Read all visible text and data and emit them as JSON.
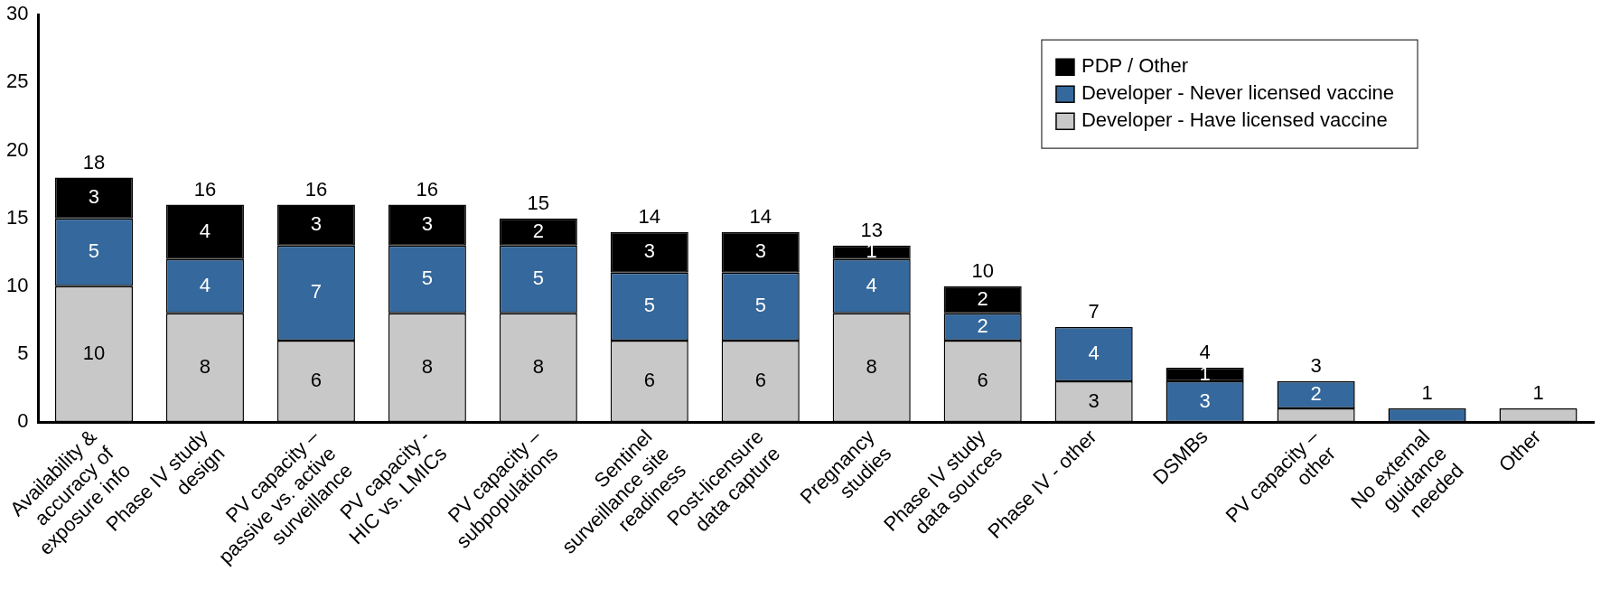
{
  "chart_data": {
    "type": "bar",
    "stacked": true,
    "categories": [
      "Availability &\naccuracy of\nexposure info",
      "Phase IV study\ndesign",
      "PV capacity –\npassive vs. active\nsurveillance",
      "PV capacity -\nHIC vs. LMICs",
      "PV capacity –\nsubpopulations",
      "Sentinel\nsurveillance site\nreadiness",
      "Post-licensure\ndata capture",
      "Pregnancy\nstudies",
      "Phase IV study\ndata sources",
      "Phase IV - other",
      "DSMBs",
      "PV capacity –\nother",
      "No external\nguidance\nneeded",
      "Other"
    ],
    "series": [
      {
        "name": "Developer - Have licensed vaccine",
        "color": "#c8c8c8",
        "values": [
          10,
          8,
          6,
          8,
          8,
          6,
          6,
          8,
          6,
          3,
          0,
          1,
          0,
          1
        ],
        "value_labels": [
          "10",
          "8",
          "6",
          "8",
          "8",
          "6",
          "6",
          "8",
          "6",
          "3",
          null,
          null,
          null,
          null
        ]
      },
      {
        "name": "Developer - Never licensed vaccine",
        "color": "#35689c",
        "values": [
          5,
          4,
          7,
          5,
          5,
          5,
          5,
          4,
          2,
          4,
          3,
          2,
          1,
          0
        ],
        "value_labels": [
          "5",
          "4",
          "7",
          "5",
          "5",
          "5",
          "5",
          "4",
          "2",
          "4",
          "3",
          "2",
          null,
          null
        ]
      },
      {
        "name": "PDP / Other",
        "color": "#000000",
        "values": [
          3,
          4,
          3,
          3,
          2,
          3,
          3,
          1,
          2,
          0,
          1,
          0,
          0,
          0
        ],
        "value_labels": [
          "3",
          "4",
          "3",
          "3",
          "2",
          "3",
          "3",
          "1",
          "2",
          null,
          "1",
          null,
          null,
          null
        ]
      }
    ],
    "totals": [
      "18",
      "16",
      "16",
      "16",
      "15",
      "14",
      "14",
      "13",
      "10",
      "7",
      "4",
      "3",
      "1",
      "1"
    ],
    "ylim": [
      0,
      30
    ],
    "yticks": [
      0,
      5,
      10,
      15,
      20,
      25,
      30
    ],
    "grid": false,
    "legend": "top right"
  }
}
